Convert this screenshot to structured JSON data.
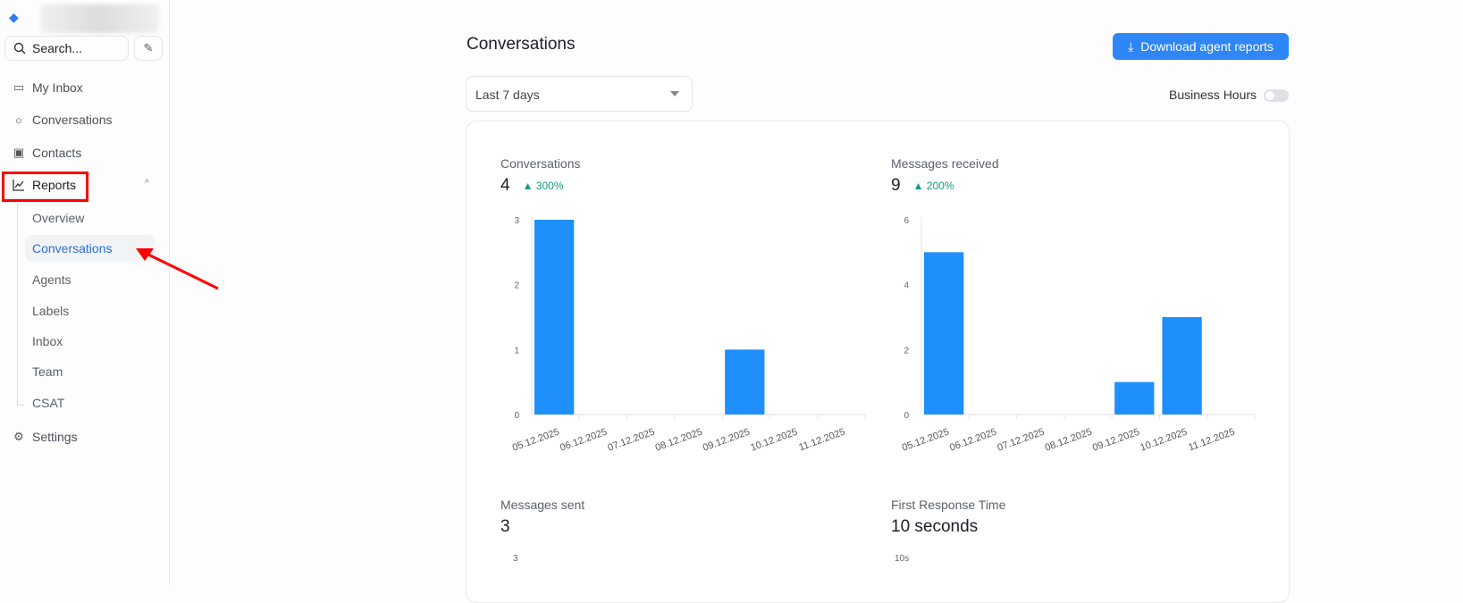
{
  "sidebar": {
    "search_placeholder": "Search...",
    "nav": [
      {
        "label": "My Inbox",
        "icon": "inbox-icon"
      },
      {
        "label": "Conversations",
        "icon": "chat-bubble-icon"
      },
      {
        "label": "Contacts",
        "icon": "contact-card-icon"
      },
      {
        "label": "Reports",
        "icon": "chart-line-icon"
      }
    ],
    "reports_sub": [
      "Overview",
      "Conversations",
      "Agents",
      "Labels",
      "Inbox",
      "Team",
      "CSAT"
    ],
    "settings": "Settings"
  },
  "header": {
    "title": "Conversations",
    "download_label": "Download agent reports"
  },
  "filters": {
    "range": "Last 7 days",
    "business_hours": "Business Hours",
    "business_hours_on": false
  },
  "metrics": [
    {
      "label": "Conversations",
      "value": "4",
      "change": "300%"
    },
    {
      "label": "Messages received",
      "value": "9",
      "change": "200%"
    },
    {
      "label": "Messages sent",
      "value": "3"
    },
    {
      "label": "First Response Time",
      "value": "10 seconds"
    }
  ],
  "chart_data": [
    {
      "type": "bar",
      "title": "Conversations",
      "categories": [
        "05.12.2025",
        "06.12.2025",
        "07.12.2025",
        "08.12.2025",
        "09.12.2025",
        "10.12.2025",
        "11.12.2025"
      ],
      "values": [
        3,
        0,
        0,
        0,
        1,
        0,
        0
      ],
      "yticks": [
        0,
        1,
        2,
        3
      ],
      "ylim": [
        0,
        3
      ],
      "color": "#1f8ffc"
    },
    {
      "type": "bar",
      "title": "Messages received",
      "categories": [
        "05.12.2025",
        "06.12.2025",
        "07.12.2025",
        "08.12.2025",
        "09.12.2025",
        "10.12.2025",
        "11.12.2025"
      ],
      "values": [
        5,
        0,
        0,
        0,
        1,
        3,
        0
      ],
      "yticks": [
        0,
        2,
        4,
        6
      ],
      "ylim": [
        0,
        6
      ],
      "color": "#1f8ffc"
    }
  ],
  "partial_ticks": {
    "sent_top": "3",
    "frt_top": "10s"
  }
}
